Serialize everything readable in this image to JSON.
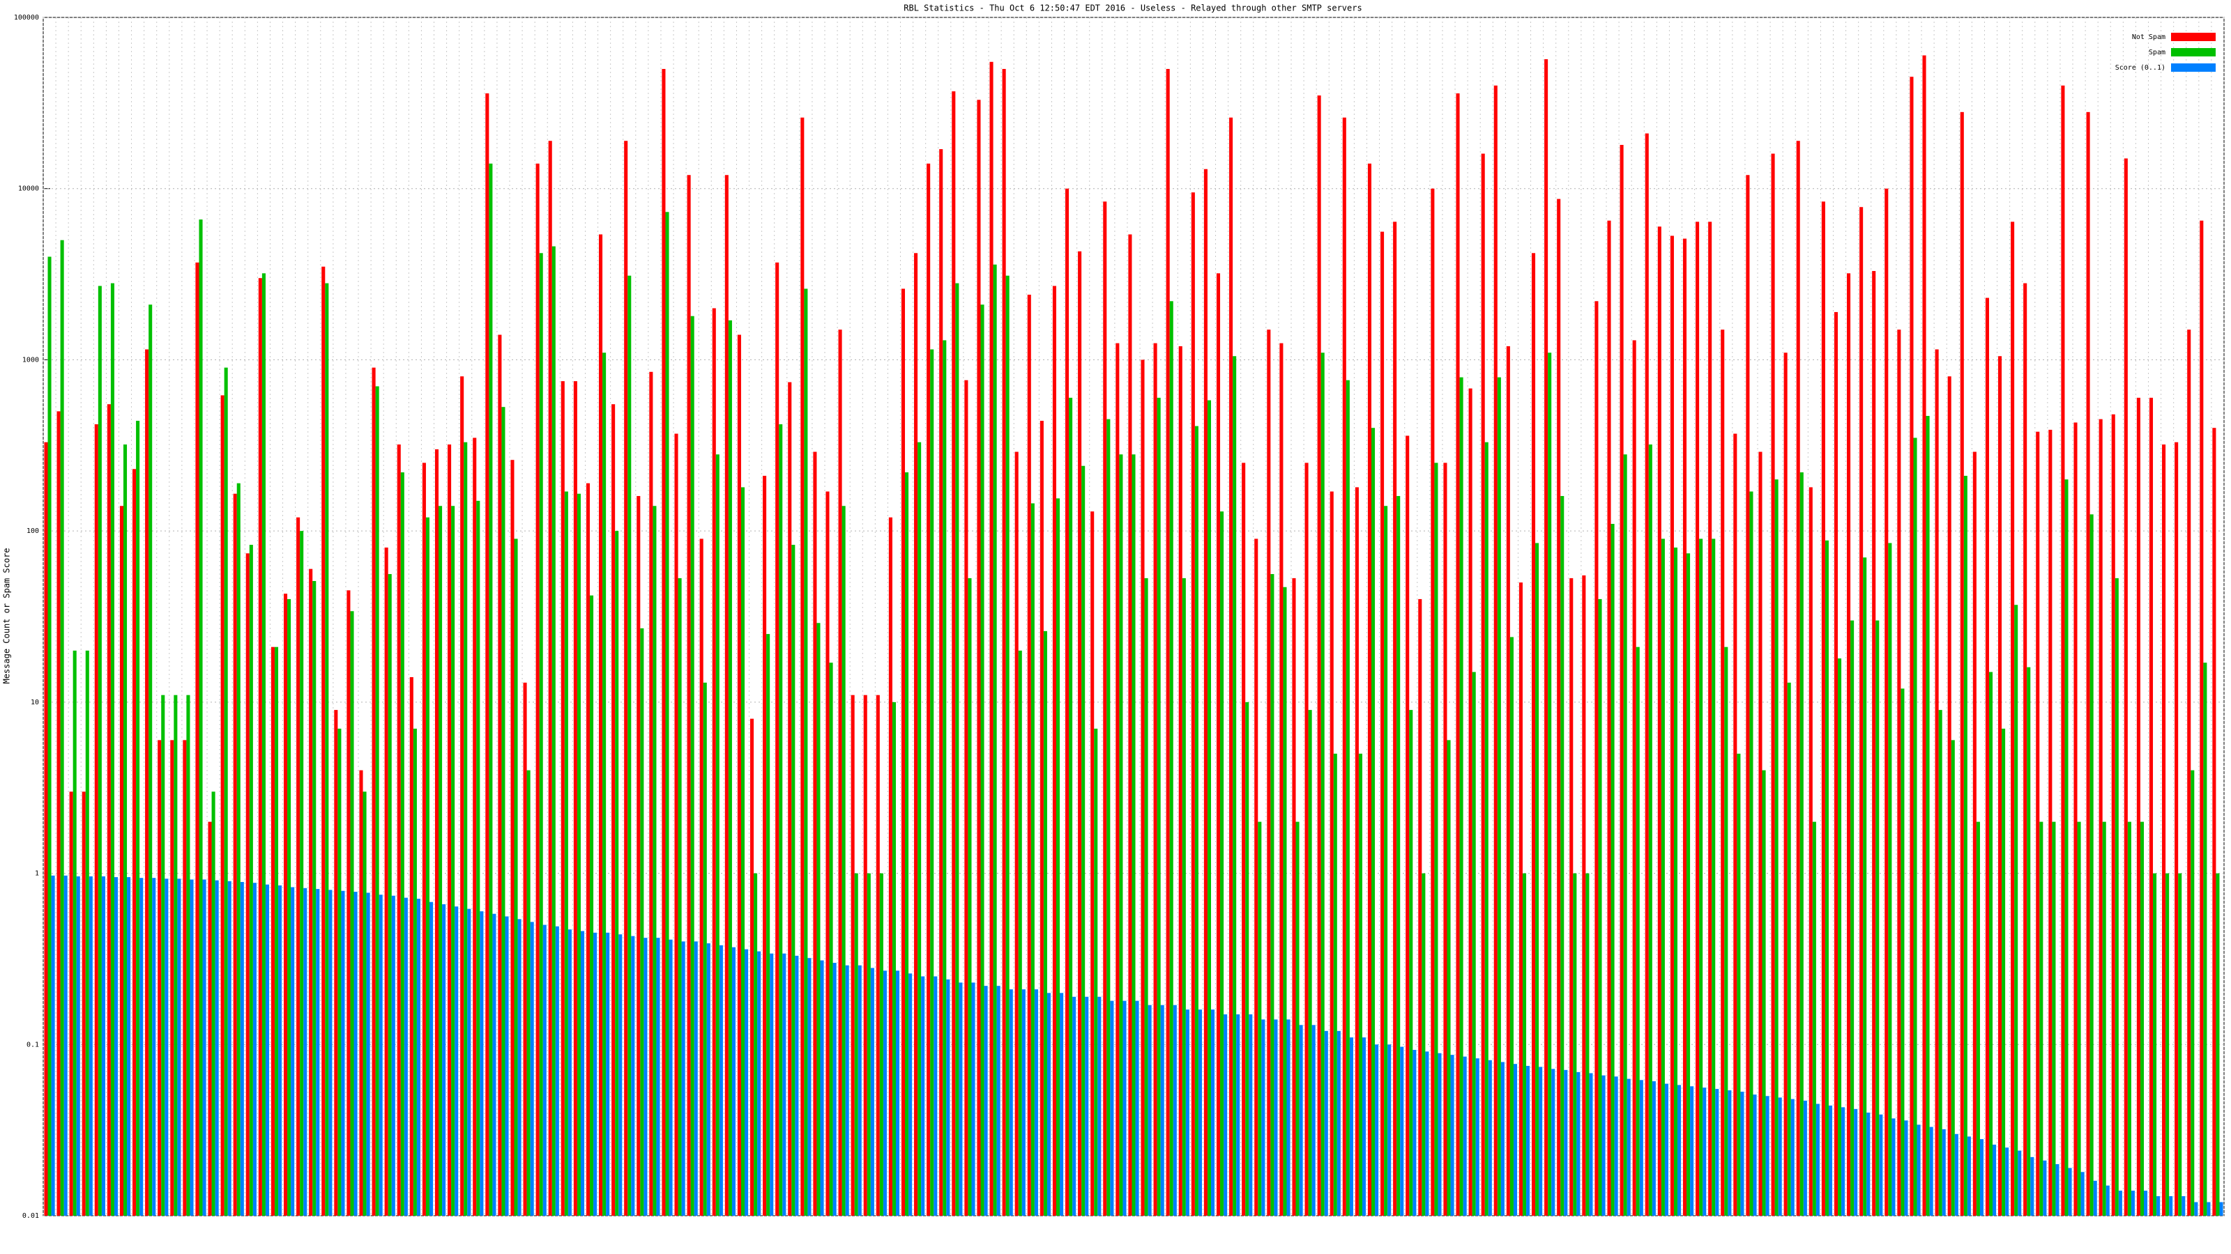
{
  "chart_data": {
    "type": "bar",
    "title": "RBL Statistics - Thu Oct  6 12:50:47 EDT 2016 - Useless - Relayed through other SMTP servers",
    "y_label": "Message Count or Spam Score",
    "log_scale": true,
    "grid": true,
    "legend_position": "top-right",
    "ylim": [
      0.01,
      100000
    ],
    "yticks": [
      0.01,
      0.1,
      1,
      10,
      100,
      1000,
      10000,
      100000
    ],
    "categories": [
      null,
      null,
      null,
      null,
      null,
      null,
      null,
      null,
      null,
      null,
      null,
      null,
      null,
      null,
      null,
      null,
      null,
      null,
      null,
      null,
      null,
      null,
      null,
      null,
      null,
      null,
      null,
      null,
      null,
      null,
      null,
      null,
      null,
      null,
      null,
      null,
      null,
      null,
      null,
      null,
      null,
      null,
      null,
      null,
      null,
      null,
      null,
      null,
      null,
      null,
      null,
      null,
      null,
      null,
      null,
      null,
      null,
      null,
      null,
      null,
      null,
      null,
      null,
      null,
      null,
      null,
      null,
      null,
      null,
      null,
      null,
      null,
      null,
      null,
      null,
      null,
      null,
      null,
      null,
      null,
      null,
      null,
      null,
      null,
      null,
      null,
      null,
      null,
      null,
      null,
      null,
      null,
      null,
      null,
      null,
      null,
      null,
      null,
      null,
      null,
      null,
      null,
      null,
      null,
      null,
      null,
      null,
      null,
      null,
      null,
      null,
      null,
      null,
      null,
      null,
      null,
      null,
      null,
      null,
      null,
      null,
      null,
      null,
      null,
      null,
      null,
      null,
      null,
      null,
      null,
      null,
      null,
      null,
      null,
      null,
      null,
      null,
      null,
      null,
      null,
      null,
      null,
      null,
      null,
      null,
      null,
      null,
      null,
      null,
      null,
      null,
      null,
      null,
      null,
      null,
      null,
      null,
      null,
      null,
      null,
      null,
      null,
      null,
      null,
      null,
      null,
      null,
      null,
      null,
      null,
      null,
      null,
      null
    ],
    "series": [
      {
        "name": "Not Spam",
        "color": "#ff0000",
        "values": [
          330,
          500,
          3,
          3,
          420,
          550,
          140,
          230,
          1150,
          6,
          6,
          6,
          3700,
          2,
          620,
          165,
          74,
          3000,
          21,
          43,
          120,
          60,
          3500,
          9,
          45,
          4,
          900,
          80,
          320,
          14,
          250,
          300,
          320,
          800,
          350,
          36000,
          1400,
          260,
          13,
          14000,
          19000,
          750,
          750,
          190,
          5400,
          550,
          19000,
          160,
          850,
          50000,
          370,
          12000,
          90,
          2000,
          12000,
          1400,
          8,
          210,
          3700,
          740,
          26000,
          290,
          170,
          1500,
          11,
          11,
          11,
          120,
          2600,
          4200,
          14000,
          17000,
          37000,
          760,
          33000,
          55000,
          50000,
          290,
          2400,
          440,
          2700,
          10000,
          4300,
          130,
          8400,
          1250,
          5400,
          1000,
          1250,
          50000,
          1200,
          9500,
          13000,
          3200,
          26000,
          250,
          90,
          1500,
          1250,
          53,
          250,
          35000,
          170,
          26000,
          180,
          14000,
          5600,
          6400,
          360,
          40,
          10000,
          250,
          36000,
          680,
          16000,
          40000,
          1200,
          50,
          4200,
          57000,
          8700,
          53,
          55,
          2200,
          6500,
          18000,
          1300,
          21000,
          6000,
          5300,
          5100,
          6400,
          6400,
          1500,
          370,
          12000,
          290,
          16000,
          1100,
          19000,
          180,
          8400,
          1900,
          3200,
          7800,
          3300,
          10000,
          1500,
          45000,
          60000,
          1150,
          800,
          28000,
          290,
          2300,
          1050,
          6400,
          2800,
          380,
          390,
          40000,
          430,
          28000,
          450,
          480,
          15000,
          600,
          600,
          320,
          330,
          1500,
          6500,
          400
        ]
      },
      {
        "name": "Spam",
        "color": "#00c000",
        "values": [
          4000,
          5000,
          20,
          20,
          2700,
          2800,
          320,
          440,
          2100,
          11,
          11,
          11,
          6600,
          3,
          900,
          190,
          83,
          3200,
          21,
          40,
          100,
          51,
          2800,
          7,
          34,
          3,
          700,
          56,
          220,
          7,
          120,
          140,
          140,
          330,
          150,
          14000,
          530,
          90,
          4,
          4200,
          4600,
          170,
          165,
          42,
          1100,
          100,
          3100,
          27,
          140,
          7300,
          53,
          1800,
          13,
          280,
          1700,
          180,
          1,
          25,
          420,
          83,
          2600,
          29,
          17,
          140,
          1,
          1,
          1,
          10,
          220,
          330,
          1150,
          1300,
          2800,
          53,
          2100,
          3600,
          3100,
          20,
          145,
          26,
          155,
          600,
          240,
          7,
          450,
          280,
          280,
          53,
          600,
          2200,
          53,
          410,
          580,
          130,
          1050,
          10,
          2,
          56,
          47,
          2,
          9,
          1100,
          5,
          760,
          5,
          400,
          140,
          160,
          9,
          1,
          250,
          6,
          790,
          15,
          330,
          790,
          24,
          1,
          85,
          1100,
          160,
          1,
          1,
          40,
          110,
          280,
          21,
          320,
          90,
          80,
          74,
          90,
          90,
          21,
          5,
          170,
          4,
          200,
          13,
          220,
          2,
          88,
          18,
          30,
          70,
          30,
          85,
          12,
          350,
          470,
          9,
          6,
          210,
          2,
          15,
          7,
          37,
          16,
          2,
          2,
          200,
          2,
          125,
          2,
          53,
          2,
          2,
          1,
          1,
          1,
          4,
          17,
          1
        ]
      },
      {
        "name": "Score (0..1)",
        "color": "#0080ff",
        "values": [
          0.97,
          0.97,
          0.96,
          0.96,
          0.96,
          0.95,
          0.95,
          0.94,
          0.94,
          0.93,
          0.93,
          0.92,
          0.92,
          0.91,
          0.9,
          0.89,
          0.88,
          0.86,
          0.85,
          0.83,
          0.82,
          0.81,
          0.8,
          0.79,
          0.78,
          0.77,
          0.75,
          0.74,
          0.72,
          0.71,
          0.68,
          0.66,
          0.64,
          0.62,
          0.6,
          0.58,
          0.56,
          0.54,
          0.52,
          0.5,
          0.49,
          0.47,
          0.46,
          0.45,
          0.45,
          0.44,
          0.43,
          0.42,
          0.42,
          0.41,
          0.4,
          0.4,
          0.39,
          0.38,
          0.37,
          0.36,
          0.35,
          0.34,
          0.34,
          0.33,
          0.32,
          0.31,
          0.3,
          0.29,
          0.29,
          0.28,
          0.27,
          0.27,
          0.26,
          0.25,
          0.25,
          0.24,
          0.23,
          0.23,
          0.22,
          0.22,
          0.21,
          0.21,
          0.21,
          0.2,
          0.2,
          0.19,
          0.19,
          0.19,
          0.18,
          0.18,
          0.18,
          0.17,
          0.17,
          0.17,
          0.16,
          0.16,
          0.16,
          0.15,
          0.15,
          0.15,
          0.14,
          0.14,
          0.14,
          0.13,
          0.13,
          0.12,
          0.12,
          0.11,
          0.11,
          0.1,
          0.1,
          0.097,
          0.093,
          0.091,
          0.089,
          0.087,
          0.085,
          0.083,
          0.081,
          0.079,
          0.077,
          0.075,
          0.074,
          0.072,
          0.071,
          0.069,
          0.068,
          0.066,
          0.065,
          0.063,
          0.062,
          0.061,
          0.059,
          0.058,
          0.057,
          0.056,
          0.055,
          0.054,
          0.053,
          0.051,
          0.05,
          0.049,
          0.048,
          0.047,
          0.045,
          0.044,
          0.043,
          0.042,
          0.04,
          0.039,
          0.037,
          0.036,
          0.034,
          0.033,
          0.032,
          0.03,
          0.029,
          0.028,
          0.026,
          0.025,
          0.024,
          0.022,
          0.021,
          0.02,
          0.019,
          0.018,
          0.016,
          0.015,
          0.014,
          0.014,
          0.014,
          0.013,
          0.013,
          0.013,
          0.012,
          0.012,
          0.012
        ]
      }
    ]
  }
}
